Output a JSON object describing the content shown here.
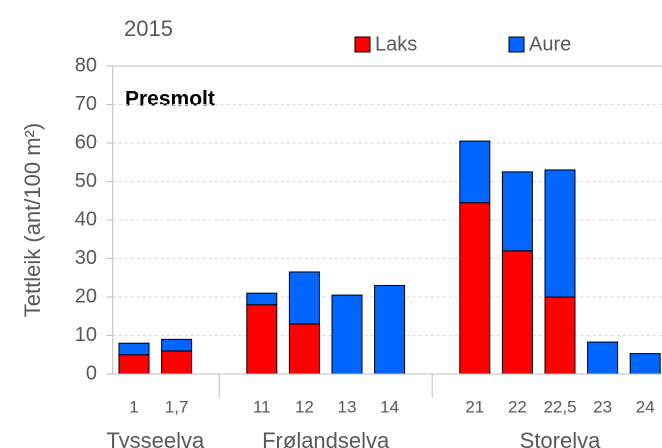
{
  "chart_data": {
    "type": "stacked-bar",
    "title": "2015",
    "annotation": "Presmolt",
    "y_label": "Tettleik (ant/100 m²)",
    "categories": [
      "1",
      "1,7",
      null,
      "11",
      "12",
      "13",
      "14",
      null,
      "21",
      "22",
      "22,5",
      "23",
      "24"
    ],
    "groups": [
      "Tysseelva",
      "Frølandselva",
      "Storelva"
    ],
    "series": [
      {
        "name": "Laks",
        "color": "#ff0000",
        "values": [
          5,
          6,
          null,
          18,
          13,
          0,
          0,
          null,
          44.5,
          32,
          20,
          0,
          0
        ]
      },
      {
        "name": "Aure",
        "color": "#0066ff",
        "values": [
          3,
          3,
          null,
          3,
          13.5,
          20.5,
          23,
          null,
          16,
          20.5,
          33,
          8.3,
          5.3
        ]
      }
    ],
    "ylim": [
      0,
      80
    ],
    "yticks": [
      0,
      10,
      20,
      30,
      40,
      50,
      60,
      70,
      80
    ],
    "grid": true
  }
}
